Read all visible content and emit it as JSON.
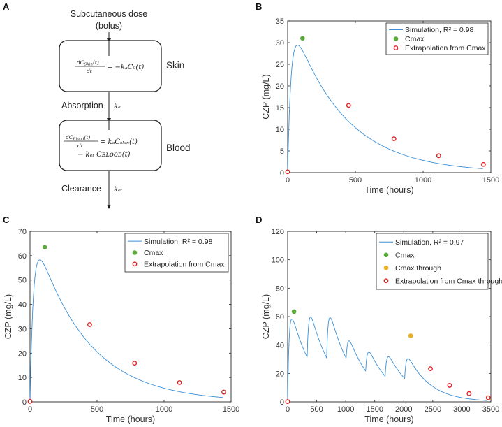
{
  "figure": {
    "panel_letters": [
      "A",
      "B",
      "C",
      "D"
    ]
  },
  "diagram": {
    "dose_label_line1": "Subcutaneous dose",
    "dose_label_line2": "(bolus)",
    "skin_label": "Skin",
    "skin_equation_lhs_num": "dC",
    "skin_equation_lhs_num_sub": "Skin",
    "skin_equation_lhs_num_arg": "(t)",
    "skin_equation_lhs_den": "dt",
    "skin_equation_rhs": "= −kₐC₀(t)",
    "absorption_label": "Absorption",
    "absorption_rate": "kₐ",
    "blood_label": "Blood",
    "blood_equation_lhs_num": "dC",
    "blood_equation_lhs_num_sub": "Blood",
    "blood_equation_lhs_num_arg": "(t)",
    "blood_equation_lhs_den": "dt",
    "blood_equation_rhs_line1": "= kₐCₛₖᵢₙ(t)",
    "blood_equation_rhs_line2": "− kₑₜ Cʙʟᴏᴏᴅ(t)",
    "clearance_label": "Clearance",
    "clearance_rate": "kₑₜ"
  },
  "chart_data": [
    {
      "panel": "B",
      "type": "line",
      "title": "",
      "xlabel": "Time (hours)",
      "ylabel": "CZP (mg/L)",
      "xlim": [
        0,
        1500
      ],
      "ylim": [
        0,
        35
      ],
      "xticks": [
        0,
        500,
        1000,
        1500
      ],
      "yticks": [
        0,
        5,
        10,
        15,
        20,
        25,
        30,
        35
      ],
      "legend_position": "top-right",
      "series": [
        {
          "name": "Simulation, R² = 0.98",
          "kind": "line",
          "color": "#3a8fd6",
          "model": {
            "dose_scale": 35.6,
            "ka": 0.04,
            "kel": 0.0026,
            "t_end": 1440
          }
        },
        {
          "name": "Cmax",
          "kind": "dot",
          "color": "#5aaa3c",
          "x": [
            110
          ],
          "y": [
            31.0
          ]
        },
        {
          "name": "Extrapolation from Cmax",
          "kind": "ring",
          "color": "#e02020",
          "x": [
            0,
            450,
            785,
            1115,
            1445
          ],
          "y": [
            0.2,
            15.5,
            7.8,
            3.9,
            1.9
          ]
        }
      ]
    },
    {
      "panel": "C",
      "type": "line",
      "title": "",
      "xlabel": "Time (hours)",
      "ylabel": "CZP (mg/L)",
      "xlim": [
        0,
        1500
      ],
      "ylim": [
        0,
        70
      ],
      "xticks": [
        0,
        500,
        1000,
        1500
      ],
      "yticks": [
        0,
        10,
        20,
        30,
        40,
        50,
        60,
        70
      ],
      "legend_position": "top-right",
      "series": [
        {
          "name": "Simulation, R² = 0.98",
          "kind": "line",
          "color": "#3a8fd6",
          "model": {
            "dose_scale": 70.5,
            "ka": 0.04,
            "kel": 0.0026,
            "t_end": 1440
          }
        },
        {
          "name": "Cmax",
          "kind": "dot",
          "color": "#5aaa3c",
          "x": [
            110
          ],
          "y": [
            63.5
          ]
        },
        {
          "name": "Extrapolation from Cmax",
          "kind": "ring",
          "color": "#e02020",
          "x": [
            0,
            445,
            780,
            1115,
            1445
          ],
          "y": [
            0.2,
            31.7,
            15.9,
            7.9,
            4.0
          ]
        }
      ]
    },
    {
      "panel": "D",
      "type": "line",
      "title": "",
      "xlabel": "Time (hours)",
      "ylabel": "CZP (mg/L)",
      "xlim": [
        0,
        3500
      ],
      "ylim": [
        0,
        120
      ],
      "xticks": [
        0,
        500,
        1000,
        1500,
        2000,
        2500,
        3000,
        3500
      ],
      "yticks": [
        0,
        20,
        40,
        60,
        80,
        100,
        120
      ],
      "legend_position": "top-right",
      "series": [
        {
          "name": "Simulation, R² = 0.97",
          "kind": "line",
          "color": "#3a8fd6",
          "model": {
            "doses": [
              [
                0,
                70.5
              ],
              [
                336,
                40
              ],
              [
                672,
                40
              ],
              [
                1008,
                20
              ],
              [
                1344,
                20
              ],
              [
                1680,
                20
              ],
              [
                2016,
                20
              ]
            ],
            "ka": 0.04,
            "kel": 0.0026,
            "t_end": 3440
          }
        },
        {
          "name": "Cmax",
          "kind": "dot",
          "color": "#5aaa3c",
          "x": [
            110
          ],
          "y": [
            63.5
          ]
        },
        {
          "name": "Cmax through",
          "kind": "dot",
          "color": "#e8b020",
          "x": [
            2120
          ],
          "y": [
            46.5
          ]
        },
        {
          "name": "Extrapolation from Cmax through",
          "kind": "ring",
          "color": "#e02020",
          "x": [
            0,
            2460,
            2790,
            3125,
            3455
          ],
          "y": [
            0.2,
            23.3,
            11.6,
            5.8,
            2.9
          ]
        }
      ]
    }
  ]
}
